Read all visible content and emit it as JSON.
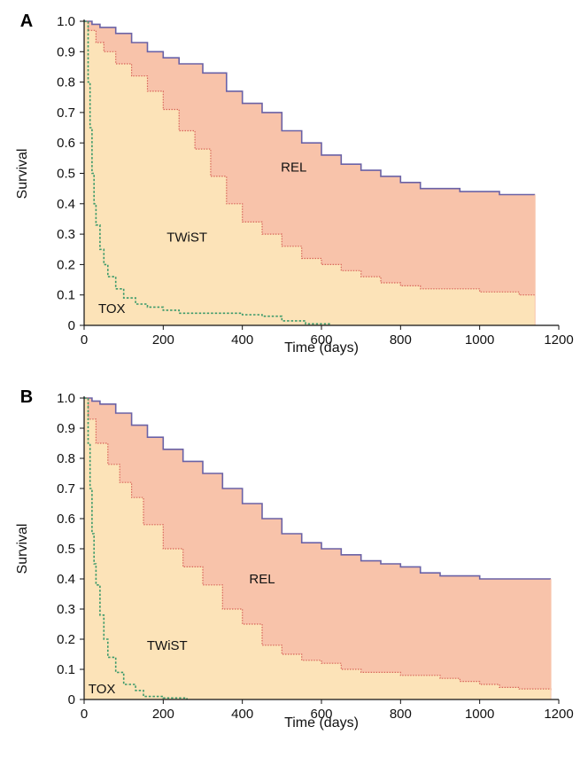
{
  "colors": {
    "rel_fill": "#F8C3AA",
    "twist_fill": "#FCE3B8",
    "os_line": "#6A62A6",
    "tox_line": "#3D9A6A",
    "rel_line": "#D8665A",
    "axis": "#111111"
  },
  "chart_data": [
    {
      "panel": "A",
      "type": "area",
      "xlabel": "Time (days)",
      "ylabel": "Survival",
      "xlim": [
        0,
        1200
      ],
      "ylim": [
        0,
        1
      ],
      "xticks": [
        "0",
        "200",
        "400",
        "600",
        "800",
        "1000",
        "1200"
      ],
      "yticks": [
        "0",
        "0.1",
        "0.2",
        "0.3",
        "0.4",
        "0.5",
        "0.6",
        "0.7",
        "0.8",
        "0.9",
        "1.0"
      ],
      "grid": false,
      "regions": [
        {
          "label": "REL",
          "x": 530,
          "y": 0.52
        },
        {
          "label": "TWiST",
          "x": 260,
          "y": 0.29
        },
        {
          "label": "TOX",
          "x": 70,
          "y": 0.055
        }
      ],
      "series": [
        {
          "role": "overall",
          "x": [
            0,
            20,
            40,
            80,
            120,
            160,
            200,
            240,
            300,
            360,
            400,
            450,
            500,
            550,
            600,
            650,
            700,
            750,
            800,
            850,
            900,
            950,
            1000,
            1050,
            1100,
            1140
          ],
          "y": [
            1.0,
            0.99,
            0.98,
            0.96,
            0.93,
            0.9,
            0.88,
            0.86,
            0.83,
            0.77,
            0.73,
            0.7,
            0.64,
            0.6,
            0.56,
            0.53,
            0.51,
            0.49,
            0.47,
            0.45,
            0.45,
            0.44,
            0.44,
            0.43,
            0.43,
            0.43
          ]
        },
        {
          "role": "relapse-free",
          "x": [
            0,
            10,
            30,
            50,
            80,
            120,
            160,
            200,
            240,
            280,
            320,
            360,
            400,
            450,
            500,
            550,
            600,
            650,
            700,
            750,
            800,
            850,
            900,
            1000,
            1100,
            1140
          ],
          "y": [
            1.0,
            0.97,
            0.93,
            0.9,
            0.86,
            0.82,
            0.77,
            0.71,
            0.64,
            0.58,
            0.49,
            0.4,
            0.34,
            0.3,
            0.26,
            0.22,
            0.2,
            0.18,
            0.16,
            0.14,
            0.13,
            0.12,
            0.12,
            0.11,
            0.1,
            0.1
          ]
        },
        {
          "role": "toxicity",
          "x": [
            0,
            10,
            15,
            20,
            25,
            30,
            40,
            50,
            60,
            80,
            100,
            130,
            160,
            200,
            240,
            300,
            400,
            450,
            500,
            560,
            620
          ],
          "y": [
            1.0,
            0.8,
            0.65,
            0.5,
            0.4,
            0.33,
            0.25,
            0.2,
            0.16,
            0.12,
            0.09,
            0.07,
            0.06,
            0.05,
            0.04,
            0.04,
            0.035,
            0.03,
            0.015,
            0.005,
            0.0
          ]
        }
      ]
    },
    {
      "panel": "B",
      "type": "area",
      "xlabel": "Time (days)",
      "ylabel": "Survival",
      "xlim": [
        0,
        1200
      ],
      "ylim": [
        0,
        1
      ],
      "xticks": [
        "0",
        "200",
        "400",
        "600",
        "800",
        "1000",
        "1200"
      ],
      "yticks": [
        "0",
        "0.1",
        "0.2",
        "0.3",
        "0.4",
        "0.5",
        "0.6",
        "0.7",
        "0.8",
        "0.9",
        "1.0"
      ],
      "grid": false,
      "regions": [
        {
          "label": "REL",
          "x": 450,
          "y": 0.4
        },
        {
          "label": "TWiST",
          "x": 210,
          "y": 0.18
        },
        {
          "label": "TOX",
          "x": 45,
          "y": 0.035
        }
      ],
      "series": [
        {
          "role": "overall",
          "x": [
            0,
            20,
            40,
            80,
            120,
            160,
            200,
            250,
            300,
            350,
            400,
            450,
            500,
            550,
            600,
            650,
            700,
            750,
            800,
            850,
            900,
            950,
            1000,
            1100,
            1180
          ],
          "y": [
            1.0,
            0.99,
            0.98,
            0.95,
            0.91,
            0.87,
            0.83,
            0.79,
            0.75,
            0.7,
            0.65,
            0.6,
            0.55,
            0.52,
            0.5,
            0.48,
            0.46,
            0.45,
            0.44,
            0.42,
            0.41,
            0.41,
            0.4,
            0.4,
            0.4
          ]
        },
        {
          "role": "relapse-free",
          "x": [
            0,
            10,
            30,
            60,
            90,
            120,
            150,
            200,
            250,
            300,
            350,
            400,
            450,
            500,
            550,
            600,
            650,
            700,
            800,
            900,
            950,
            1000,
            1050,
            1100,
            1180
          ],
          "y": [
            1.0,
            0.93,
            0.85,
            0.78,
            0.72,
            0.67,
            0.58,
            0.5,
            0.44,
            0.38,
            0.3,
            0.25,
            0.18,
            0.15,
            0.13,
            0.12,
            0.1,
            0.09,
            0.08,
            0.07,
            0.06,
            0.05,
            0.04,
            0.035,
            0.03
          ]
        },
        {
          "role": "toxicity",
          "x": [
            0,
            10,
            15,
            20,
            25,
            30,
            40,
            50,
            60,
            80,
            100,
            130,
            150,
            200,
            260
          ],
          "y": [
            1.0,
            0.85,
            0.7,
            0.55,
            0.45,
            0.38,
            0.28,
            0.2,
            0.14,
            0.09,
            0.05,
            0.03,
            0.01,
            0.005,
            0.0
          ]
        }
      ]
    }
  ]
}
